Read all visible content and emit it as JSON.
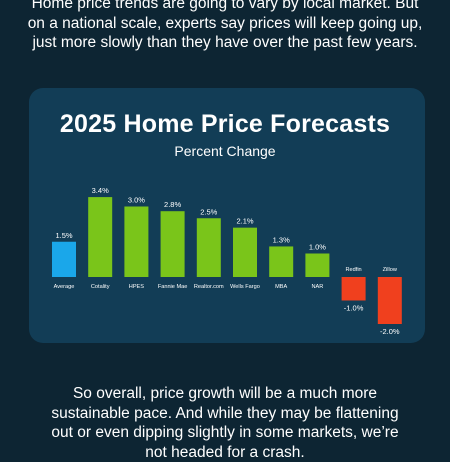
{
  "intro": {
    "lines": [
      "Home price trends are going to vary by local market. But",
      "on a national scale, experts say prices will keep going up,",
      "just more slowly than they have over the past few years."
    ]
  },
  "outro": {
    "lines": [
      "So overall, price growth will be a much more",
      "sustainable pace. And while they may be flattening",
      "out or even dipping slightly in some markets, we’re",
      "not headed for a crash."
    ]
  },
  "colors": {
    "background": "#0d2533",
    "card": "#123d56",
    "average_bar": "#1aa7ea",
    "positive_bar": "#7ac51a",
    "negative_bar": "#f0401e"
  },
  "chart_data": {
    "type": "bar",
    "title": "2025 Home Price Forecasts",
    "subtitle": "Percent Change",
    "categories": [
      "Average",
      "Cotality",
      "HPES",
      "Fannie Mae",
      "Realtor.com",
      "Wells Fargo",
      "MBA",
      "NAR",
      "Redfin",
      "Zillow"
    ],
    "values": [
      1.5,
      3.4,
      3.0,
      2.8,
      2.5,
      2.1,
      1.3,
      1.0,
      -1.0,
      -2.0
    ],
    "value_labels": [
      "1.5%",
      "3.4%",
      "3.0%",
      "2.8%",
      "2.5%",
      "2.1%",
      "1.3%",
      "1.0%",
      "-1.0%",
      "-2.0%"
    ],
    "grid": false,
    "legend": "none"
  }
}
